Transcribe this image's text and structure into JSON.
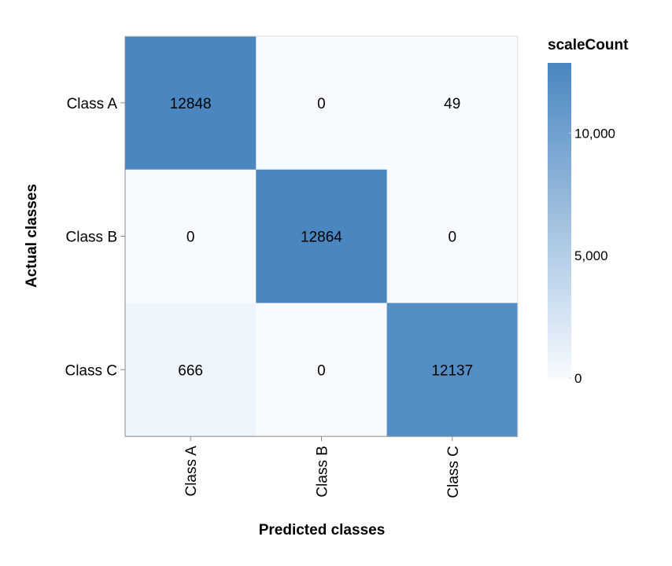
{
  "chart_data": {
    "type": "heatmap",
    "x_categories": [
      "Class A",
      "Class B",
      "Class C"
    ],
    "y_categories": [
      "Class A",
      "Class B",
      "Class C"
    ],
    "xlabel": "Predicted classes",
    "ylabel": "Actual classes",
    "values": [
      [
        12848,
        0,
        49
      ],
      [
        0,
        12864,
        0
      ],
      [
        666,
        0,
        12137
      ]
    ],
    "color_scale": {
      "title": "scaleCount",
      "domain": [
        0,
        12864
      ],
      "low_color": "#f7fbff",
      "high_color": "#4a86c0",
      "ticks": [
        0,
        5000,
        10000
      ],
      "tick_labels": [
        "0",
        "5,000",
        "10,000"
      ]
    },
    "legend_placement": "right",
    "grid": false
  }
}
